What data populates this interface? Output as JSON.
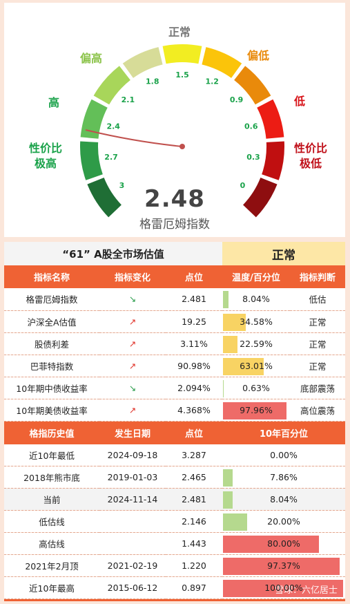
{
  "gauge": {
    "value": "2.48",
    "value_number": 2.481,
    "caption": "格雷厄姆指数",
    "scale_max": 3,
    "ticks": [
      "3",
      "2.7",
      "2.4",
      "2.1",
      "1.8",
      "1.5",
      "1.2",
      "0.9",
      "0.6",
      "0.3",
      "0"
    ],
    "zones": [
      {
        "label": "性价比\n极高",
        "color": "#1f6e35"
      },
      {
        "label": "高",
        "color": "#3aa24a"
      },
      {
        "label": "偏高",
        "color": "#9ed35a"
      },
      {
        "label": "正常",
        "color": "#f0e91e"
      },
      {
        "label": "偏低",
        "color": "#e98a0b"
      },
      {
        "label": "低",
        "color": "#ec1c14"
      },
      {
        "label": "性价比\n极低",
        "color": "#9a0f12"
      }
    ],
    "segment_colors": [
      "#1f6e35",
      "#2e9b48",
      "#63bf58",
      "#a8d65a",
      "#d7dc98",
      "#f2ed22",
      "#fbc40a",
      "#e98a0b",
      "#ec1c14",
      "#c00f10",
      "#8e0e10"
    ]
  },
  "valuation": {
    "title": "“61” A股全市场估值",
    "state": "正常",
    "columns": [
      "指标名称",
      "指标变化",
      "点位",
      "温度/百分位",
      "指标判断"
    ],
    "rows": [
      {
        "name": "格雷厄姆指数",
        "trend": "↘",
        "dir": "down",
        "value": "2.481",
        "pct": "8.04%",
        "pct_num": 8.04,
        "bar_color": "#b5d98e",
        "judge": "低估"
      },
      {
        "name": "沪深全A估值",
        "trend": "↗",
        "dir": "up",
        "value": "19.25",
        "pct": "34.58%",
        "pct_num": 34.58,
        "bar_color": "#f8d363",
        "judge": "正常"
      },
      {
        "name": "股债利差",
        "trend": "↗",
        "dir": "up",
        "value": "3.11%",
        "pct": "22.59%",
        "pct_num": 22.59,
        "bar_color": "#f8d363",
        "judge": "正常"
      },
      {
        "name": "巴菲特指数",
        "trend": "↗",
        "dir": "up",
        "value": "90.98%",
        "pct": "63.01%",
        "pct_num": 63.01,
        "bar_color": "#f8d363",
        "judge": "正常"
      },
      {
        "name": "10年期中债收益率",
        "trend": "↘",
        "dir": "down",
        "value": "2.094%",
        "pct": "0.63%",
        "pct_num": 0.63,
        "bar_color": "#b5d98e",
        "judge": "底部震荡"
      },
      {
        "name": "10年期美债收益率",
        "trend": "↗",
        "dir": "up",
        "value": "4.368%",
        "pct": "97.96%",
        "pct_num": 97.96,
        "bar_color": "#ee6b68",
        "judge": "高位震荡"
      }
    ]
  },
  "history": {
    "columns": [
      "格指历史值",
      "发生日期",
      "点位",
      "10年百分位"
    ],
    "rows": [
      {
        "name": "近10年最低",
        "date": "2024-09-18",
        "value": "3.287",
        "pct": "0.00%",
        "pct_num": 0,
        "bar_color": "#b5d98e",
        "hl": false
      },
      {
        "name": "2018年熊市底",
        "date": "2019-01-03",
        "value": "2.465",
        "pct": "7.86%",
        "pct_num": 7.86,
        "bar_color": "#b5d98e",
        "hl": false
      },
      {
        "name": "当前",
        "date": "2024-11-14",
        "value": "2.481",
        "pct": "8.04%",
        "pct_num": 8.04,
        "bar_color": "#b5d98e",
        "hl": true
      },
      {
        "name": "低估线",
        "date": "",
        "value": "2.146",
        "pct": "20.00%",
        "pct_num": 20,
        "bar_color": "#b5d98e",
        "hl": false
      },
      {
        "name": "高估线",
        "date": "",
        "value": "1.443",
        "pct": "80.00%",
        "pct_num": 80,
        "bar_color": "#ee6b68",
        "hl": false
      },
      {
        "name": "2021年2月顶",
        "date": "2021-02-19",
        "value": "1.220",
        "pct": "97.37%",
        "pct_num": 97.37,
        "bar_color": "#ee6b68",
        "hl": false
      },
      {
        "name": "近10年最高",
        "date": "2015-06-12",
        "value": "0.897",
        "pct": "100.00%",
        "pct_num": 100,
        "bar_color": "#ee6b68",
        "hl": false
      }
    ]
  },
  "watermark": "雪球：六亿居士"
}
